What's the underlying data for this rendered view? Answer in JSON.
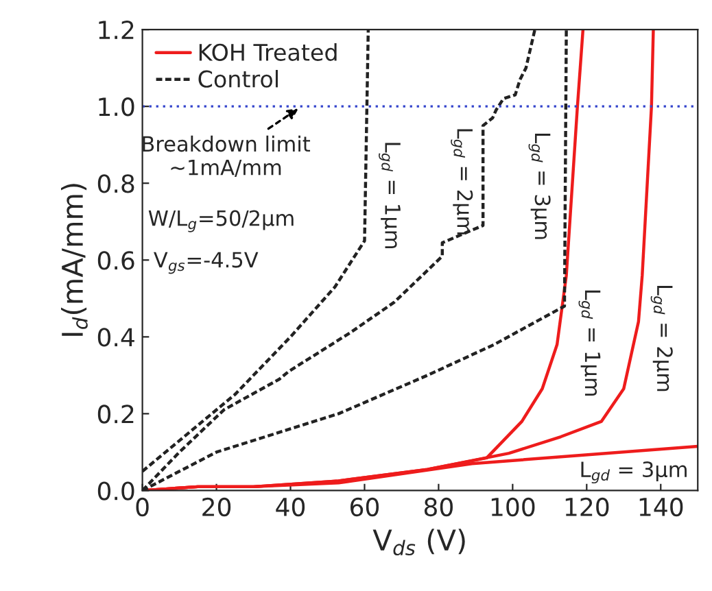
{
  "chart_data": {
    "type": "line",
    "xlabel": "V$_{ds}$ (V)",
    "ylabel": "I$_{d}$(mA/mm)",
    "xlim": [
      0,
      150
    ],
    "ylim": [
      0,
      1.2
    ],
    "xticks": [
      0,
      20,
      40,
      60,
      80,
      100,
      120,
      140
    ],
    "yticks": [
      {
        "value": 0,
        "label": "0.0"
      },
      {
        "value": 0.2,
        "label": "0.2"
      },
      {
        "value": 0.4,
        "label": "0.4"
      },
      {
        "value": 0.6,
        "label": "0.6"
      },
      {
        "value": 0.8,
        "label": "0.8"
      },
      {
        "value": 1.0,
        "label": "1.0"
      },
      {
        "value": 1.2,
        "label": "1.2"
      }
    ],
    "grid": false,
    "legend": "top left",
    "series": [
      {
        "name": "KOH Treated",
        "color": "#ee1c1c",
        "line_style": "solid",
        "x": [
          0,
          15,
          30,
          53,
          77,
          93,
          102.5,
          108,
          112,
          114.5,
          117.5,
          119
        ],
        "values": [
          0,
          0.01,
          0.01,
          0.025,
          0.055,
          0.085,
          0.18,
          0.265,
          0.38,
          0.56,
          1.0,
          1.2
        ]
      },
      {
        "color": "#ee1c1c",
        "line_style": "solid",
        "x": [
          0,
          15,
          30,
          53,
          77,
          99,
          113,
          124,
          130,
          134,
          135,
          137.5,
          138
        ],
        "values": [
          0,
          0.01,
          0.01,
          0.025,
          0.055,
          0.097,
          0.14,
          0.18,
          0.265,
          0.44,
          0.56,
          1.0,
          1.2
        ]
      },
      {
        "color": "#ee1c1c",
        "line_style": "solid",
        "x": [
          0,
          15,
          30,
          53,
          89,
          150
        ],
        "values": [
          0,
          0.01,
          0.01,
          0.02,
          0.07,
          0.115
        ]
      },
      {
        "name": "Control",
        "color": "#222222",
        "line_style": "dashed",
        "x": [
          0,
          10,
          25,
          40,
          52,
          60,
          61
        ],
        "values": [
          0.05,
          0.13,
          0.25,
          0.4,
          0.53,
          0.65,
          1.2
        ]
      },
      {
        "color": "#222222",
        "line_style": "dashed",
        "x": [
          0,
          10,
          22,
          37,
          39.5,
          56,
          68,
          81,
          81,
          92,
          92,
          94.6,
          95.5,
          97.5,
          100.7,
          102,
          103.6,
          106
        ],
        "values": [
          0,
          0.1,
          0.21,
          0.29,
          0.31,
          0.41,
          0.49,
          0.61,
          0.645,
          0.69,
          0.95,
          0.97,
          0.99,
          1.02,
          1.03,
          1.07,
          1.1,
          1.2
        ]
      },
      {
        "color": "#222222",
        "line_style": "dashed",
        "x": [
          0,
          20,
          53,
          77,
          95,
          114,
          114.5
        ],
        "values": [
          0,
          0.1,
          0.2,
          0.3,
          0.38,
          0.48,
          1.2
        ]
      }
    ],
    "ref_lines": [
      {
        "axis": "y",
        "value": 1.0,
        "color": "#3344cc",
        "line_style": "dotted"
      }
    ],
    "annotations": [
      {
        "text": "Breakdown limit\n~1mA/mm",
        "x": 43,
        "y": 1.0
      },
      "W/L$_{g}$=50/2μm",
      "V$_{gs}$=-4.5V",
      "L$_{gd}$ = 1μm",
      "L$_{gd}$ = 2μm",
      "L$_{gd}$ = 3μm",
      "L$_{gd}$ = 1μm",
      "L$_{gd}$ = 2μm",
      "L$_{gd}$ = 3μm"
    ]
  }
}
